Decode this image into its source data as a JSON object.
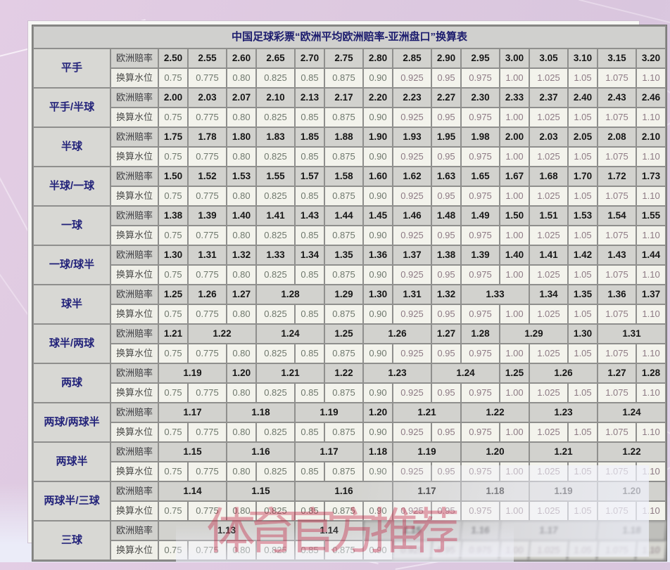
{
  "title": "中国足球彩票“欧洲平均欧洲赔率-亚洲盘口”换算表",
  "row_label_odds": "欧洲赔率",
  "row_label_water": "换算水位",
  "watermark": "体育官方推荐",
  "colors": {
    "label_text": "#23237a",
    "odds_text": "#161616",
    "water_text_green": "#6e776c",
    "water_text_pink": "#8d7a84",
    "watermark_red": "#c42847",
    "grid": "#8f8f8d",
    "odds_bg": "#d2d2ce",
    "water_bg": "#f3f3ec",
    "page_bg": "#ddc9e0"
  },
  "water_levels": [
    "0.75",
    "0.775",
    "0.80",
    "0.825",
    "0.85",
    "0.875",
    "0.90",
    "0.925",
    "0.95",
    "0.975",
    "1.00",
    "1.025",
    "1.05",
    "1.075",
    "1.10"
  ],
  "groups": [
    {
      "handicap": "平手",
      "odds": [
        [
          "2.50",
          1
        ],
        [
          "2.55",
          1
        ],
        [
          "2.60",
          1
        ],
        [
          "2.65",
          1
        ],
        [
          "2.70",
          1
        ],
        [
          "2.75",
          1
        ],
        [
          "2.80",
          1
        ],
        [
          "2.85",
          1
        ],
        [
          "2.90",
          1
        ],
        [
          "2.95",
          1
        ],
        [
          "3.00",
          1
        ],
        [
          "3.05",
          1
        ],
        [
          "3.10",
          1
        ],
        [
          "3.15",
          1
        ],
        [
          "3.20",
          1
        ]
      ]
    },
    {
      "handicap": "平手/半球",
      "odds": [
        [
          "2.00",
          1
        ],
        [
          "2.03",
          1
        ],
        [
          "2.07",
          1
        ],
        [
          "2.10",
          1
        ],
        [
          "2.13",
          1
        ],
        [
          "2.17",
          1
        ],
        [
          "2.20",
          1
        ],
        [
          "2.23",
          1
        ],
        [
          "2.27",
          1
        ],
        [
          "2.30",
          1
        ],
        [
          "2.33",
          1
        ],
        [
          "2.37",
          1
        ],
        [
          "2.40",
          1
        ],
        [
          "2.43",
          1
        ],
        [
          "2.46",
          1
        ]
      ]
    },
    {
      "handicap": "半球",
      "odds": [
        [
          "1.75",
          1
        ],
        [
          "1.78",
          1
        ],
        [
          "1.80",
          1
        ],
        [
          "1.83",
          1
        ],
        [
          "1.85",
          1
        ],
        [
          "1.88",
          1
        ],
        [
          "1.90",
          1
        ],
        [
          "1.93",
          1
        ],
        [
          "1.95",
          1
        ],
        [
          "1.98",
          1
        ],
        [
          "2.00",
          1
        ],
        [
          "2.03",
          1
        ],
        [
          "2.05",
          1
        ],
        [
          "2.08",
          1
        ],
        [
          "2.10",
          1
        ]
      ]
    },
    {
      "handicap": "半球/一球",
      "odds": [
        [
          "1.50",
          1
        ],
        [
          "1.52",
          1
        ],
        [
          "1.53",
          1
        ],
        [
          "1.55",
          1
        ],
        [
          "1.57",
          1
        ],
        [
          "1.58",
          1
        ],
        [
          "1.60",
          1
        ],
        [
          "1.62",
          1
        ],
        [
          "1.63",
          1
        ],
        [
          "1.65",
          1
        ],
        [
          "1.67",
          1
        ],
        [
          "1.68",
          1
        ],
        [
          "1.70",
          1
        ],
        [
          "1.72",
          1
        ],
        [
          "1.73",
          1
        ]
      ]
    },
    {
      "handicap": "一球",
      "odds": [
        [
          "1.38",
          1
        ],
        [
          "1.39",
          1
        ],
        [
          "1.40",
          1
        ],
        [
          "1.41",
          1
        ],
        [
          "1.43",
          1
        ],
        [
          "1.44",
          1
        ],
        [
          "1.45",
          1
        ],
        [
          "1.46",
          1
        ],
        [
          "1.48",
          1
        ],
        [
          "1.49",
          1
        ],
        [
          "1.50",
          1
        ],
        [
          "1.51",
          1
        ],
        [
          "1.53",
          1
        ],
        [
          "1.54",
          1
        ],
        [
          "1.55",
          1
        ]
      ]
    },
    {
      "handicap": "一球/球半",
      "odds": [
        [
          "1.30",
          1
        ],
        [
          "1.31",
          1
        ],
        [
          "1.32",
          1
        ],
        [
          "1.33",
          1
        ],
        [
          "1.34",
          1
        ],
        [
          "1.35",
          1
        ],
        [
          "1.36",
          1
        ],
        [
          "1.37",
          1
        ],
        [
          "1.38",
          1
        ],
        [
          "1.39",
          1
        ],
        [
          "1.40",
          1
        ],
        [
          "1.41",
          1
        ],
        [
          "1.42",
          1
        ],
        [
          "1.43",
          1
        ],
        [
          "1.44",
          1
        ]
      ]
    },
    {
      "handicap": "球半",
      "odds": [
        [
          "1.25",
          1
        ],
        [
          "1.26",
          1
        ],
        [
          "1.27",
          1
        ],
        [
          "1.28",
          2
        ],
        [
          "1.29",
          1
        ],
        [
          "1.30",
          1
        ],
        [
          "1.31",
          1
        ],
        [
          "1.32",
          1
        ],
        [
          "1.33",
          2
        ],
        [
          "1.34",
          1
        ],
        [
          "1.35",
          1
        ],
        [
          "1.36",
          1
        ],
        [
          "1.37",
          1
        ]
      ]
    },
    {
      "handicap": "球半/两球",
      "odds": [
        [
          "1.21",
          1
        ],
        [
          "1.22",
          2
        ],
        [
          "1.24",
          2
        ],
        [
          "1.25",
          1
        ],
        [
          "1.26",
          2
        ],
        [
          "1.27",
          1
        ],
        [
          "1.28",
          1
        ],
        [
          "1.29",
          2
        ],
        [
          "1.30",
          1
        ],
        [
          "1.31",
          2
        ]
      ]
    },
    {
      "handicap": "两球",
      "odds": [
        [
          "1.19",
          2
        ],
        [
          "1.20",
          1
        ],
        [
          "1.21",
          2
        ],
        [
          "1.22",
          1
        ],
        [
          "1.23",
          2
        ],
        [
          "1.24",
          2
        ],
        [
          "1.25",
          1
        ],
        [
          "1.26",
          2
        ],
        [
          "1.27",
          1
        ],
        [
          "1.28",
          1
        ]
      ]
    },
    {
      "handicap": "两球/两球半",
      "odds": [
        [
          "1.17",
          2
        ],
        [
          "1.18",
          2
        ],
        [
          "1.19",
          2
        ],
        [
          "1.20",
          1
        ],
        [
          "1.21",
          2
        ],
        [
          "1.22",
          2
        ],
        [
          "1.23",
          2
        ],
        [
          "1.24",
          2
        ]
      ]
    },
    {
      "handicap": "两球半",
      "odds": [
        [
          "1.15",
          2
        ],
        [
          "1.16",
          2
        ],
        [
          "1.17",
          2
        ],
        [
          "1.18",
          1
        ],
        [
          "1.19",
          2
        ],
        [
          "1.20",
          2
        ],
        [
          "1.21",
          2
        ],
        [
          "1.22",
          2
        ]
      ]
    },
    {
      "handicap": "两球半/三球",
      "odds": [
        [
          "1.14",
          2
        ],
        [
          "1.15",
          2
        ],
        [
          "1.16",
          3
        ],
        [
          "1.17",
          2
        ],
        [
          "1.18",
          2
        ],
        [
          "1.19",
          2
        ],
        [
          "1.20",
          2
        ]
      ]
    },
    {
      "handicap": "三球",
      "odds": [
        [
          "1.13",
          4
        ],
        [
          "1.14",
          2
        ],
        [
          "1.15",
          3,
          true
        ],
        [
          "1.16",
          1,
          true
        ],
        [
          "1.17",
          3,
          true
        ],
        [
          "1.18",
          2,
          true
        ]
      ],
      "water_blur_from": 7
    }
  ]
}
